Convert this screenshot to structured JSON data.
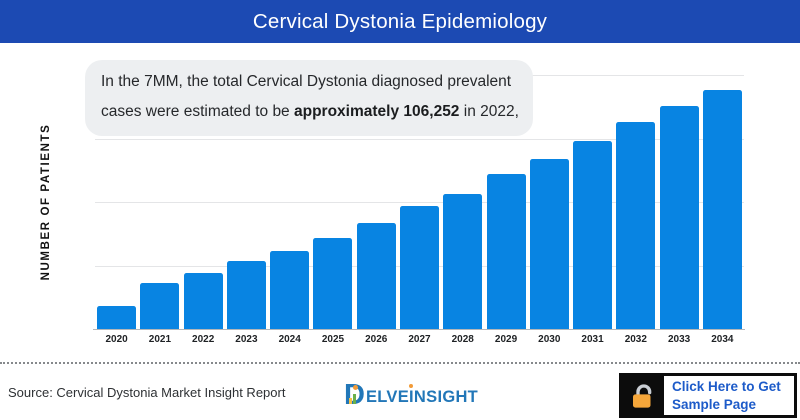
{
  "header": {
    "title": "Cervical Dystonia Epidemiology"
  },
  "annotation": {
    "line1": "In the 7MM, the total Cervical Dystonia diagnosed prevalent",
    "line2_pre": "cases were estimated to be ",
    "line2_bold": "approximately 106,252",
    "line2_post": " in 2022,"
  },
  "chart_data": {
    "type": "bar",
    "title": "Cervical Dystonia Epidemiology",
    "categories": [
      "2020",
      "2021",
      "2022",
      "2023",
      "2024",
      "2025",
      "2026",
      "2027",
      "2028",
      "2029",
      "2030",
      "2031",
      "2032",
      "2033",
      "2034"
    ],
    "values": [
      44000,
      87000,
      106252,
      129000,
      147000,
      172000,
      201000,
      232000,
      256000,
      293000,
      322000,
      355000,
      391000,
      421000,
      451000
    ],
    "value_note": "2022 value stated in annotation as approximately 106,252; other values estimated from bar heights",
    "xlabel": "",
    "ylabel": "NUMBER OF PATIENTS",
    "ylim": [
      0,
      480000
    ],
    "grid": "4 horizontal gridlines, unlabeled y-axis",
    "legend": "none",
    "bar_color": "#0884e2"
  },
  "footer": {
    "source": "Source: Cervical Dystonia Market Insight Report",
    "logo": {
      "d": "D",
      "part1": "ELVE",
      "part2": "I",
      "part3": "NSIGHT"
    },
    "cta": {
      "line1": "Click Here to Get",
      "line2": "Sample Page",
      "icon": "unlock-icon"
    }
  },
  "colors": {
    "header_blue": "#1c4ab3",
    "bar_blue": "#0884e2",
    "annotation_bg": "#edeff1",
    "cta_text_blue": "#1d5bc9",
    "lock_orange": "#f5a63a",
    "logo_blue": "#2277b8",
    "logo_orange": "#f29b38",
    "logo_green": "#6ab04c",
    "logo_yellow": "#f6c244"
  }
}
